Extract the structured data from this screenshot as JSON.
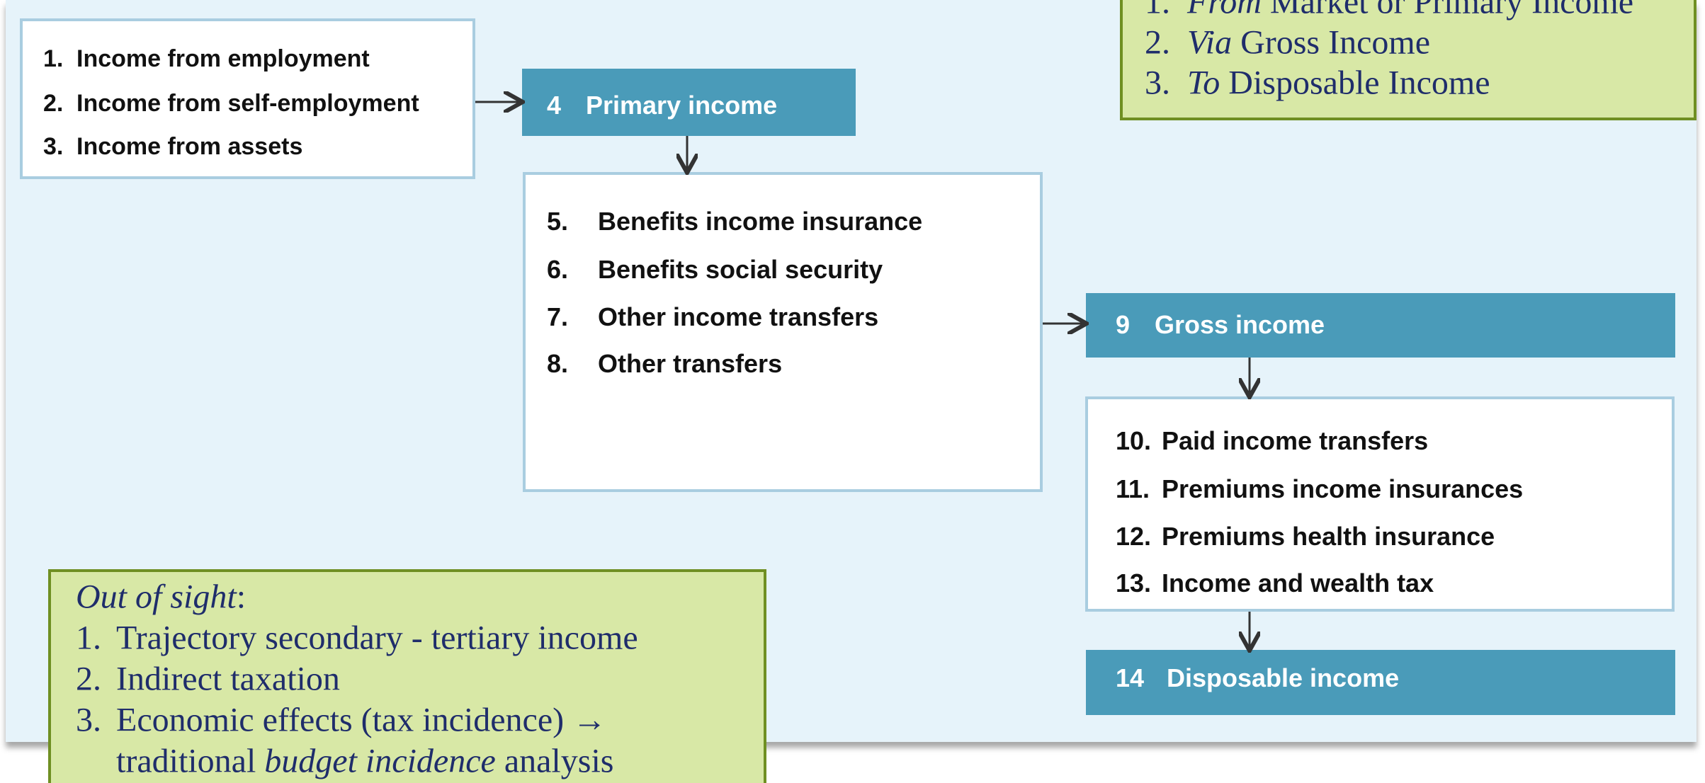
{
  "sources": {
    "items": [
      {
        "number": "1.",
        "label": "Income from employment"
      },
      {
        "number": "2.",
        "label": "Income from self-employment"
      },
      {
        "number": "3.",
        "label": "Income from assets"
      }
    ]
  },
  "primary_income": {
    "number": "4",
    "label": "Primary income"
  },
  "transfers_received": {
    "items": [
      {
        "number": "5.",
        "label": "Benefits income insurance"
      },
      {
        "number": "6.",
        "label": "Benefits social security"
      },
      {
        "number": "7.",
        "label": "Other income transfers"
      },
      {
        "number": "8.",
        "label": "Other transfers"
      }
    ]
  },
  "gross_income": {
    "number": "9",
    "label": "Gross income"
  },
  "transfers_paid": {
    "items": [
      {
        "number": "10.",
        "label": "Paid income transfers"
      },
      {
        "number": "11.",
        "label": "Premiums income insurances"
      },
      {
        "number": "12.",
        "label": "Premiums health insurance"
      },
      {
        "number": "13.",
        "label": "Income and wealth tax"
      }
    ]
  },
  "disposable_income": {
    "number": "14",
    "label": "Disposable income"
  },
  "trajectory_note": {
    "items": [
      {
        "number": "1.",
        "lines": [
          [
            {
              "text": "From",
              "italic": true
            },
            {
              "text": " Market or Primary Income"
            }
          ]
        ]
      },
      {
        "number": "2.",
        "lines": [
          [
            {
              "text": "Via",
              "italic": true
            },
            {
              "text": " Gross Income"
            }
          ]
        ]
      },
      {
        "number": "3.",
        "lines": [
          [
            {
              "text": "To",
              "italic": true
            },
            {
              "text": " Disposable Income"
            }
          ]
        ]
      }
    ]
  },
  "out_of_sight_note": {
    "heading": [
      {
        "text": "Out of sight",
        "italic": true
      },
      {
        "text": ":"
      }
    ],
    "items": [
      {
        "number": "1.",
        "lines": [
          [
            {
              "text": "Trajectory secondary - tertiary income"
            }
          ]
        ]
      },
      {
        "number": "2.",
        "lines": [
          [
            {
              "text": "Indirect taxation"
            }
          ]
        ]
      },
      {
        "number": "3.",
        "lines": [
          [
            {
              "text": "Economic effects (tax incidence) →"
            }
          ],
          [
            {
              "text": "traditional "
            },
            {
              "text": "budget incidence",
              "italic": true
            },
            {
              "text": " analysis"
            }
          ]
        ]
      }
    ]
  }
}
